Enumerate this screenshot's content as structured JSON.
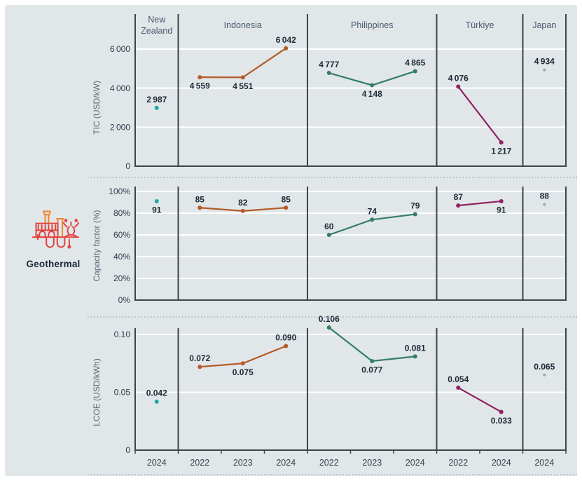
{
  "figure": {
    "category_label": "Geothermal"
  },
  "colors": {
    "canvas_bg": "#e1e6e9",
    "grid": "#ffffff",
    "axis": "#3d4449",
    "dotted_divider": "#9aa5ad",
    "data_label": "#1b2a36",
    "tick_label": "#2f3e4a",
    "header_label": "#4a5b6d",
    "axis_title": "#5a6b77",
    "year_label": "#39444d",
    "icon_red": "#e2403a",
    "icon_orange": "#f0862c"
  },
  "chart_data": {
    "type": "line",
    "title": "Geothermal: total installed cost, capacity factor and LCOE by country",
    "legend_position": "none",
    "grid": true,
    "countries": [
      {
        "name": "New Zealand",
        "header_lines": [
          "New",
          "Zealand"
        ],
        "slots": 1,
        "years": [
          "2024"
        ],
        "color": "#1bab9e",
        "point_radius": 3
      },
      {
        "name": "Indonesia",
        "header_lines": [
          "Indonesia"
        ],
        "slots": 3,
        "years": [
          "2022",
          "2023",
          "2024"
        ],
        "color": "#b55a28",
        "point_radius": 3
      },
      {
        "name": "Philippines",
        "header_lines": [
          "Philippines"
        ],
        "slots": 3,
        "years": [
          "2022",
          "2023",
          "2024"
        ],
        "color": "#347d67",
        "point_radius": 3
      },
      {
        "name": "Türkiye",
        "header_lines": [
          "Türkiye"
        ],
        "slots": 2,
        "years": [
          "2022",
          "2024"
        ],
        "color": "#8e2163",
        "point_radius": 3
      },
      {
        "name": "Japan",
        "header_lines": [
          "Japan"
        ],
        "slots": 1,
        "years": [
          "2024"
        ],
        "color": "#9fa8a6",
        "point_radius": 2
      }
    ],
    "metrics": [
      {
        "id": "tic",
        "ylabel": "TIC (USD/kW)",
        "ylim": [
          0,
          6000
        ],
        "yticks": [
          {
            "value": 6000,
            "label": "6 000"
          },
          {
            "value": 4000,
            "label": "4 000"
          },
          {
            "value": 2000,
            "label": "2 000"
          },
          {
            "value": 0,
            "label": "0"
          }
        ],
        "series": [
          {
            "country": "New Zealand",
            "values": [
              2987
            ],
            "labels": [
              "2 987"
            ],
            "label_pos": [
              "above"
            ]
          },
          {
            "country": "Indonesia",
            "values": [
              4559,
              4551,
              6042
            ],
            "labels": [
              "4 559",
              "4 551",
              "6 042"
            ],
            "label_pos": [
              "below",
              "below",
              "above"
            ]
          },
          {
            "country": "Philippines",
            "values": [
              4777,
              4148,
              4865
            ],
            "labels": [
              "4 777",
              "4 148",
              "4 865"
            ],
            "label_pos": [
              "above",
              "below",
              "above"
            ]
          },
          {
            "country": "Türkiye",
            "values": [
              4076,
              1217
            ],
            "labels": [
              "4 076",
              "1 217"
            ],
            "label_pos": [
              "above",
              "below"
            ]
          },
          {
            "country": "Japan",
            "values": [
              4934
            ],
            "labels": [
              "4 934"
            ],
            "label_pos": [
              "above"
            ]
          }
        ]
      },
      {
        "id": "capacity-factor",
        "ylabel": "Capacity factor (%)",
        "ylim": [
          0,
          100
        ],
        "yticks": [
          {
            "value": 100,
            "label": "100%"
          },
          {
            "value": 80,
            "label": "80%"
          },
          {
            "value": 60,
            "label": "60%"
          },
          {
            "value": 40,
            "label": "40%"
          },
          {
            "value": 20,
            "label": "20%"
          },
          {
            "value": 0,
            "label": "0%"
          }
        ],
        "series": [
          {
            "country": "New Zealand",
            "values": [
              91
            ],
            "labels": [
              "91"
            ],
            "label_pos": [
              "below"
            ]
          },
          {
            "country": "Indonesia",
            "values": [
              85,
              82,
              85
            ],
            "labels": [
              "85",
              "82",
              "85"
            ],
            "label_pos": [
              "above",
              "above",
              "above"
            ]
          },
          {
            "country": "Philippines",
            "values": [
              60,
              74,
              79
            ],
            "labels": [
              "60",
              "74",
              "79"
            ],
            "label_pos": [
              "above",
              "above",
              "above"
            ]
          },
          {
            "country": "Türkiye",
            "values": [
              87,
              91
            ],
            "labels": [
              "87",
              "91"
            ],
            "label_pos": [
              "above",
              "below"
            ]
          },
          {
            "country": "Japan",
            "values": [
              88
            ],
            "labels": [
              "88"
            ],
            "label_pos": [
              "above"
            ]
          }
        ]
      },
      {
        "id": "lcoe",
        "ylabel": "LCOE (USD/kWh)",
        "ylim": [
          0,
          0.1
        ],
        "yticks": [
          {
            "value": 0.1,
            "label": "0.10"
          },
          {
            "value": 0.05,
            "label": "0.05"
          },
          {
            "value": 0,
            "label": "0"
          }
        ],
        "series": [
          {
            "country": "New Zealand",
            "values": [
              0.042
            ],
            "labels": [
              "0.042"
            ],
            "label_pos": [
              "above"
            ]
          },
          {
            "country": "Indonesia",
            "values": [
              0.072,
              0.075,
              0.09
            ],
            "labels": [
              "0.072",
              "0.075",
              "0.090"
            ],
            "label_pos": [
              "above",
              "below",
              "above"
            ]
          },
          {
            "country": "Philippines",
            "values": [
              0.106,
              0.077,
              0.081
            ],
            "labels": [
              "0.106",
              "0.077",
              "0.081"
            ],
            "label_pos": [
              "above",
              "below",
              "above"
            ]
          },
          {
            "country": "Türkiye",
            "values": [
              0.054,
              0.033
            ],
            "labels": [
              "0.054",
              "0.033"
            ],
            "label_pos": [
              "above",
              "below"
            ]
          },
          {
            "country": "Japan",
            "values": [
              0.065
            ],
            "labels": [
              "0.065"
            ],
            "label_pos": [
              "above"
            ]
          }
        ]
      }
    ]
  }
}
